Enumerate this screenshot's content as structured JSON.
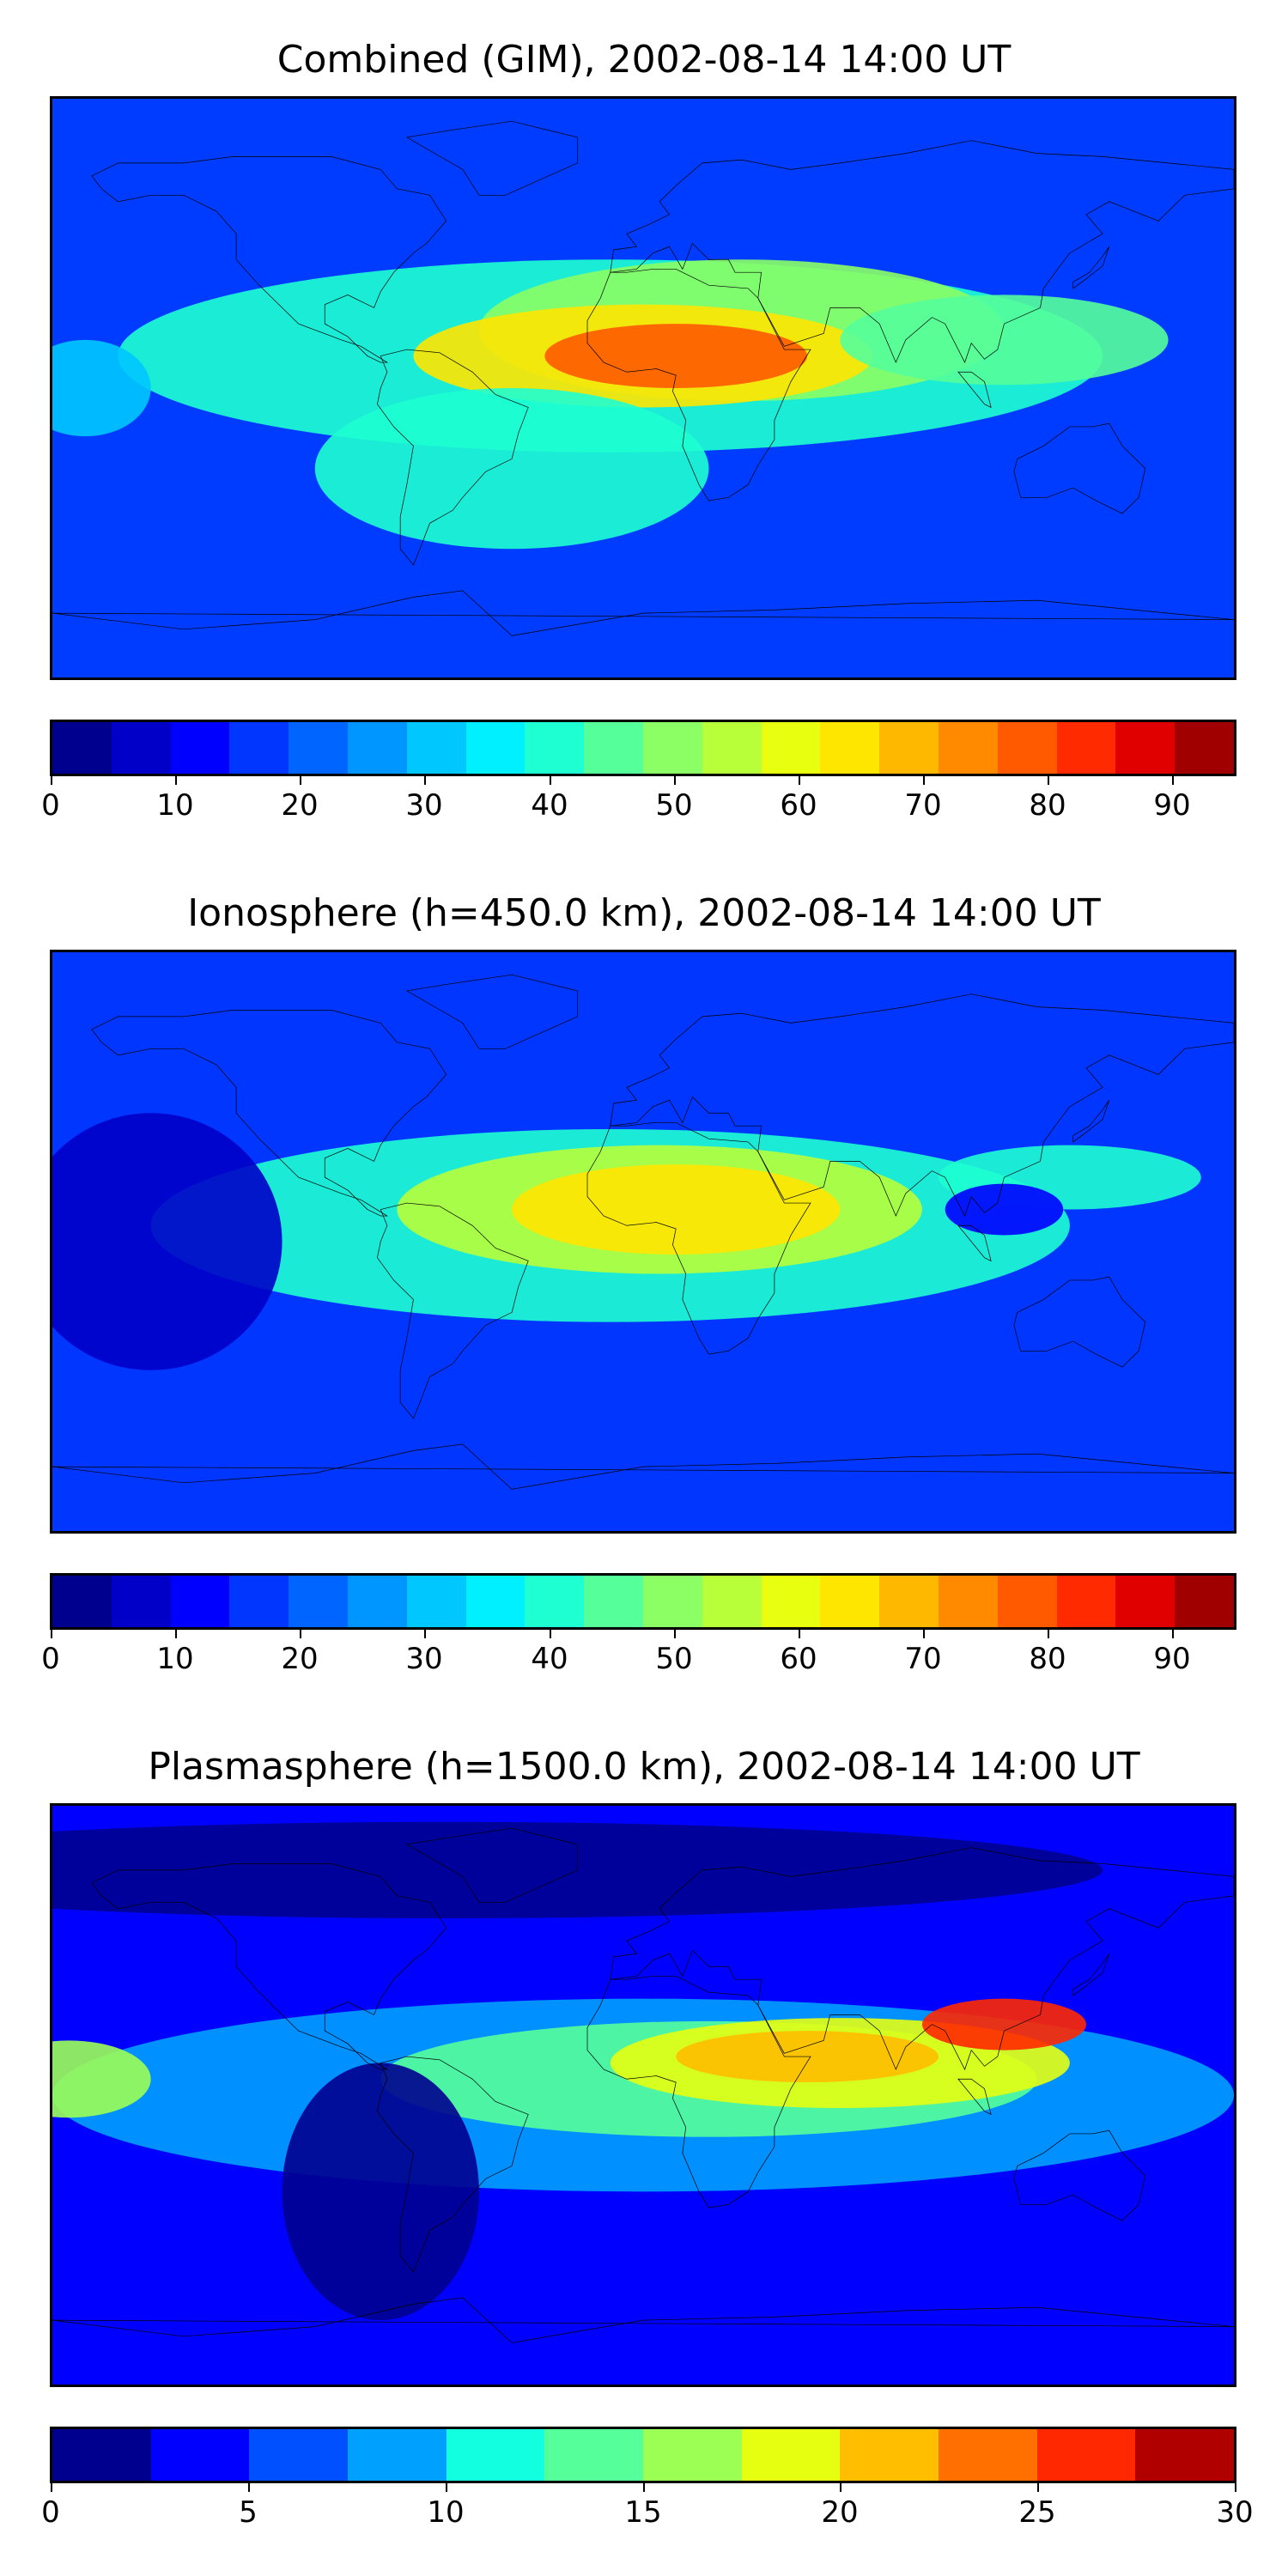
{
  "panels": [
    {
      "title": "Combined (GIM), 2002-08-14 14:00 UT",
      "colorbar": {
        "min": 0,
        "max": 95,
        "ticks": [
          "0",
          "10",
          "20",
          "30",
          "40",
          "50",
          "60",
          "70",
          "80",
          "90"
        ],
        "tick_values": [
          0,
          10,
          20,
          30,
          40,
          50,
          60,
          70,
          80,
          90
        ],
        "colors": [
          "#00008f",
          "#0000c8",
          "#0000ff",
          "#0036ff",
          "#0064ff",
          "#0096ff",
          "#00c8ff",
          "#00f0ff",
          "#1effd2",
          "#55ff9a",
          "#8bff64",
          "#b8ff3a",
          "#e8ff10",
          "#ffe600",
          "#ffb800",
          "#ff8a00",
          "#ff5a00",
          "#ff2a00",
          "#e00000",
          "#a00000"
        ]
      },
      "background": "#003cff",
      "blobs": [
        {
          "lon": -10,
          "lat": 10,
          "rx": 150,
          "ry": 30,
          "level": 8
        },
        {
          "lon": 30,
          "lat": 18,
          "rx": 80,
          "ry": 22,
          "level": 10
        },
        {
          "lon": 0,
          "lat": 10,
          "rx": 70,
          "ry": 16,
          "level": 13
        },
        {
          "lon": 10,
          "lat": 10,
          "rx": 40,
          "ry": 10,
          "level": 16
        },
        {
          "lon": 110,
          "lat": 15,
          "rx": 50,
          "ry": 14,
          "level": 9
        },
        {
          "lon": -40,
          "lat": -25,
          "rx": 60,
          "ry": 25,
          "level": 8
        },
        {
          "lon": -170,
          "lat": 0,
          "rx": 20,
          "ry": 15,
          "level": 6
        }
      ]
    },
    {
      "title": "Ionosphere  (h=450.0 km), 2002-08-14 14:00 UT",
      "colorbar": {
        "min": 0,
        "max": 95,
        "ticks": [
          "0",
          "10",
          "20",
          "30",
          "40",
          "50",
          "60",
          "70",
          "80",
          "90"
        ],
        "tick_values": [
          0,
          10,
          20,
          30,
          40,
          50,
          60,
          70,
          80,
          90
        ],
        "colors": [
          "#00008f",
          "#0000c8",
          "#0000ff",
          "#0036ff",
          "#0064ff",
          "#0096ff",
          "#00c8ff",
          "#00f0ff",
          "#1effd2",
          "#55ff9a",
          "#8bff64",
          "#b8ff3a",
          "#e8ff10",
          "#ffe600",
          "#ffb800",
          "#ff8a00",
          "#ff5a00",
          "#ff2a00",
          "#e00000",
          "#a00000"
        ]
      },
      "background": "#0036ff",
      "blobs": [
        {
          "lon": -10,
          "lat": 5,
          "rx": 140,
          "ry": 30,
          "level": 8
        },
        {
          "lon": 5,
          "lat": 10,
          "rx": 80,
          "ry": 20,
          "level": 11
        },
        {
          "lon": 10,
          "lat": 10,
          "rx": 50,
          "ry": 14,
          "level": 13
        },
        {
          "lon": 130,
          "lat": 20,
          "rx": 40,
          "ry": 10,
          "level": 8
        },
        {
          "lon": 110,
          "lat": 10,
          "rx": 18,
          "ry": 8,
          "level": 2
        },
        {
          "lon": -150,
          "lat": 0,
          "rx": 40,
          "ry": 40,
          "level": 1
        }
      ]
    },
    {
      "title": "Plasmasphere (h=1500.0 km), 2002-08-14 14:00 UT",
      "colorbar": {
        "min": 0,
        "max": 30,
        "ticks": [
          "0",
          "5",
          "10",
          "15",
          "20",
          "25",
          "30"
        ],
        "tick_values": [
          0,
          5,
          10,
          15,
          20,
          25,
          30
        ],
        "colors": [
          "#00008f",
          "#0000ff",
          "#0050ff",
          "#00a0ff",
          "#12ffe0",
          "#55ff9a",
          "#9cff54",
          "#e6ff10",
          "#ffbe00",
          "#ff7000",
          "#ff2800",
          "#b00000"
        ]
      },
      "background": "#0000ff",
      "blobs": [
        {
          "lon": 0,
          "lat": 0,
          "rx": 180,
          "ry": 30,
          "level": 3
        },
        {
          "lon": 20,
          "lat": 5,
          "rx": 100,
          "ry": 18,
          "level": 5
        },
        {
          "lon": 60,
          "lat": 10,
          "rx": 70,
          "ry": 14,
          "level": 7
        },
        {
          "lon": 50,
          "lat": 12,
          "rx": 40,
          "ry": 8,
          "level": 8
        },
        {
          "lon": 110,
          "lat": 22,
          "rx": 25,
          "ry": 8,
          "level": 10
        },
        {
          "lon": -175,
          "lat": 5,
          "rx": 25,
          "ry": 12,
          "level": 6
        },
        {
          "lon": -80,
          "lat": -30,
          "rx": 30,
          "ry": 40,
          "level": 0
        },
        {
          "lon": -60,
          "lat": 70,
          "rx": 200,
          "ry": 15,
          "level": 0
        }
      ]
    }
  ]
}
